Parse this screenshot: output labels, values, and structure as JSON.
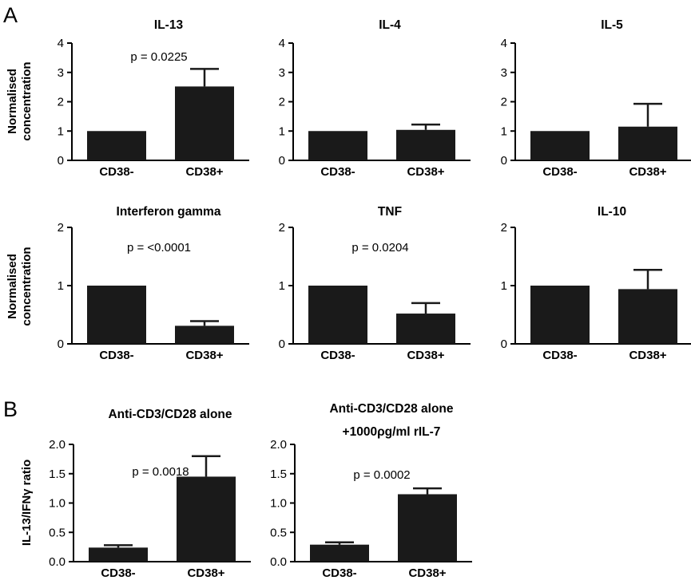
{
  "panel_labels": {
    "A": "A",
    "B": "B"
  },
  "y_labels": {
    "row1": [
      "Normalised",
      "concentration"
    ],
    "row2": [
      "Normalised",
      "concentration"
    ],
    "row3": [
      "IL-13/IFNγ ratio"
    ]
  },
  "chart_data": [
    {
      "type": "bar",
      "title": "IL-13",
      "categories": [
        "CD38-",
        "CD38+"
      ],
      "values": [
        1.0,
        2.52
      ],
      "errors": [
        0,
        0.6
      ],
      "ylim": [
        0,
        4
      ],
      "yticks": [
        "0",
        "1",
        "2",
        "3",
        "4"
      ],
      "annotation": "p = 0.0225"
    },
    {
      "type": "bar",
      "title": "IL-4",
      "categories": [
        "CD38-",
        "CD38+"
      ],
      "values": [
        1.0,
        1.04
      ],
      "errors": [
        0,
        0.18
      ],
      "ylim": [
        0,
        4
      ],
      "yticks": [
        "0",
        "1",
        "2",
        "3",
        "4"
      ],
      "annotation": ""
    },
    {
      "type": "bar",
      "title": "IL-5",
      "categories": [
        "CD38-",
        "CD38+"
      ],
      "values": [
        1.0,
        1.15
      ],
      "errors": [
        0,
        0.78
      ],
      "ylim": [
        0,
        4
      ],
      "yticks": [
        "0",
        "1",
        "2",
        "3",
        "4"
      ],
      "annotation": ""
    },
    {
      "type": "bar",
      "title": "Interferon gamma",
      "categories": [
        "CD38-",
        "CD38+"
      ],
      "values": [
        1.0,
        0.31
      ],
      "errors": [
        0,
        0.08
      ],
      "ylim": [
        0,
        2
      ],
      "yticks": [
        "0",
        "1",
        "2"
      ],
      "annotation": "p = <0.0001"
    },
    {
      "type": "bar",
      "title": "TNF",
      "categories": [
        "CD38-",
        "CD38+"
      ],
      "values": [
        1.0,
        0.52
      ],
      "errors": [
        0,
        0.18
      ],
      "ylim": [
        0,
        2
      ],
      "yticks": [
        "0",
        "1",
        "2"
      ],
      "annotation": "p = 0.0204"
    },
    {
      "type": "bar",
      "title": "IL-10",
      "categories": [
        "CD38-",
        "CD38+"
      ],
      "values": [
        1.0,
        0.94
      ],
      "errors": [
        0,
        0.33
      ],
      "ylim": [
        0,
        2
      ],
      "yticks": [
        "0",
        "1",
        "2"
      ],
      "annotation": ""
    },
    {
      "type": "bar",
      "title": "Anti-CD3/CD28 alone",
      "title2": "",
      "categories": [
        "CD38-",
        "CD38+"
      ],
      "values": [
        0.24,
        1.45
      ],
      "errors": [
        0.04,
        0.35
      ],
      "ylim": [
        0,
        2.0
      ],
      "yticks": [
        "0.0",
        "0.5",
        "1.0",
        "1.5",
        "2.0"
      ],
      "annotation": "p = 0.0018"
    },
    {
      "type": "bar",
      "title": "Anti-CD3/CD28 alone",
      "title2": "+1000ρg/ml rIL-7",
      "categories": [
        "CD38-",
        "CD38+"
      ],
      "values": [
        0.29,
        1.15
      ],
      "errors": [
        0.04,
        0.1
      ],
      "ylim": [
        0,
        2.0
      ],
      "yticks": [
        "0.0",
        "0.5",
        "1.0",
        "1.5",
        "2.0"
      ],
      "annotation": "p = 0.0002"
    }
  ]
}
